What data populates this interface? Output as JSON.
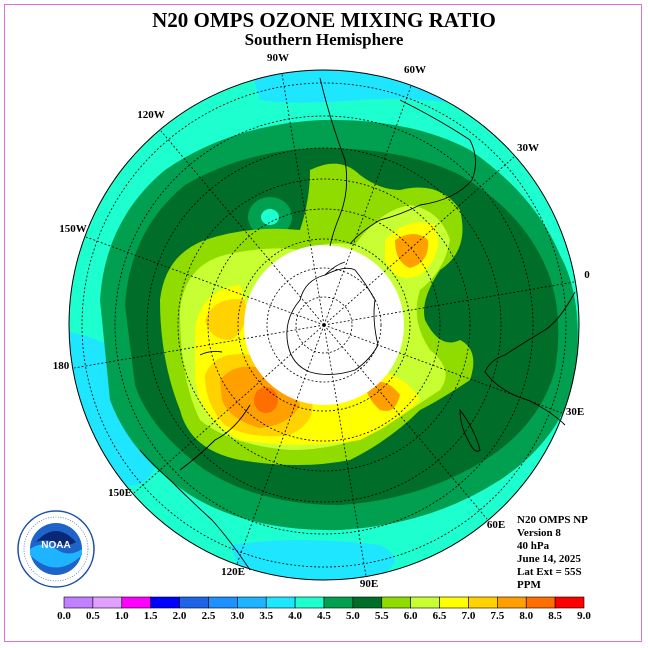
{
  "title": "N20 OMPS OZONE MIXING RATIO",
  "subtitle": "Southern Hemisphere",
  "longitude_labels": [
    "90W",
    "60W",
    "30W",
    "0",
    "30E",
    "60E",
    "90E",
    "120E",
    "150E",
    "180",
    "150W",
    "120W"
  ],
  "info": {
    "line1": "N20 OMPS NP",
    "line2": "Version 8",
    "line3": "40 hPa",
    "line4": "June 14, 2025",
    "line5": "Lat Ext = 55S",
    "line6": "PPM"
  },
  "logo": {
    "text": "NOAA",
    "ring_text": "NATIONAL OCEANIC AND ATMOSPHERIC ADMINISTRATION · U.S. DEPARTMENT OF COMMERCE"
  },
  "colorbar": {
    "ticks": [
      "0.0",
      "0.5",
      "1.0",
      "1.5",
      "2.0",
      "2.5",
      "3.0",
      "3.5",
      "4.0",
      "4.5",
      "5.0",
      "5.5",
      "6.0",
      "6.5",
      "7.0",
      "7.5",
      "8.0",
      "8.5",
      "9.0"
    ],
    "colors": [
      "#c080ff",
      "#e0a0ff",
      "#ff00ff",
      "#0000ff",
      "#1e64e6",
      "#1e90ff",
      "#1eb4ff",
      "#1ee6ff",
      "#1effd0",
      "#00a050",
      "#006e28",
      "#90dc00",
      "#c8ff32",
      "#ffff00",
      "#ffd200",
      "#ffa000",
      "#ff6e00",
      "#ff0000",
      "#a06e3c"
    ]
  },
  "colors": {
    "cyan": "#1ee6ff",
    "turquoise": "#1effd0",
    "green_mid": "#00a050",
    "green_dark": "#006e28",
    "yellowgreen": "#90dc00",
    "lime": "#c8ff32",
    "yellow": "#ffff00",
    "gold": "#ffd200",
    "orange": "#ffa000",
    "darkorange": "#ff6e00"
  }
}
